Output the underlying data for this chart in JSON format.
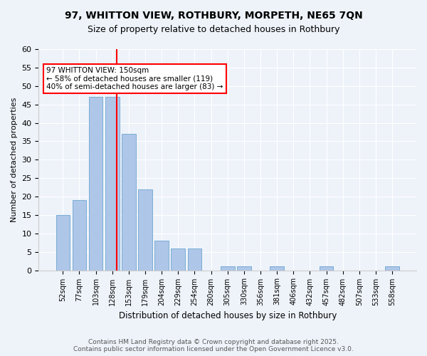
{
  "title": "97, WHITTON VIEW, ROTHBURY, MORPETH, NE65 7QN",
  "subtitle": "Size of property relative to detached houses in Rothbury",
  "xlabel": "Distribution of detached houses by size in Rothbury",
  "ylabel": "Number of detached properties",
  "categories": [
    "52sqm",
    "77sqm",
    "103sqm",
    "128sqm",
    "153sqm",
    "179sqm",
    "204sqm",
    "229sqm",
    "254sqm",
    "280sqm",
    "305sqm",
    "330sqm",
    "356sqm",
    "381sqm",
    "406sqm",
    "432sqm",
    "457sqm",
    "482sqm",
    "507sqm",
    "533sqm",
    "558sqm"
  ],
  "values": [
    15,
    19,
    47,
    47,
    37,
    22,
    8,
    6,
    6,
    0,
    1,
    1,
    0,
    1,
    0,
    0,
    1,
    0,
    0,
    0,
    1
  ],
  "bar_color": "#aec6e8",
  "bar_edge_color": "#7aadd4",
  "ylim": [
    0,
    60
  ],
  "yticks": [
    0,
    5,
    10,
    15,
    20,
    25,
    30,
    35,
    40,
    45,
    50,
    55,
    60
  ],
  "vline_x": 3.75,
  "annotation_text": "97 WHITTON VIEW: 150sqm\n← 58% of detached houses are smaller (119)\n40% of semi-detached houses are larger (83) →",
  "annotation_box_color": "#ff0000",
  "background_color": "#eef3fa",
  "footer": "Contains HM Land Registry data © Crown copyright and database right 2025.\nContains public sector information licensed under the Open Government Licence v3.0."
}
